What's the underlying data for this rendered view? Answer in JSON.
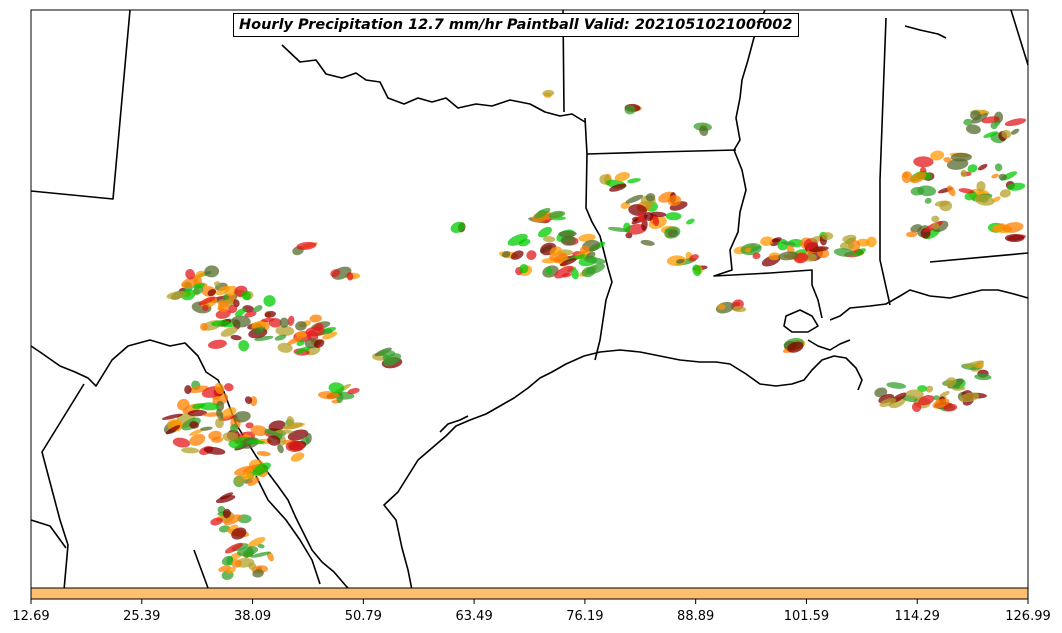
{
  "title": "Hourly Precipitation 12.7 mm/hr Paintball Valid: 202105102100f002",
  "colors": {
    "colorbar_fill": "#fdbf6f",
    "paintball_palette": [
      "#e31a1c",
      "#ff7f00",
      "#33a02c",
      "#00cc00",
      "#800000",
      "#b3a22b",
      "#556b2f",
      "#ff9900"
    ]
  },
  "colorbar": {
    "tick_labels": [
      "12.69",
      "25.39",
      "38.09",
      "50.79",
      "63.49",
      "76.19",
      "88.89",
      "101.59",
      "114.29",
      "126.99"
    ]
  }
}
